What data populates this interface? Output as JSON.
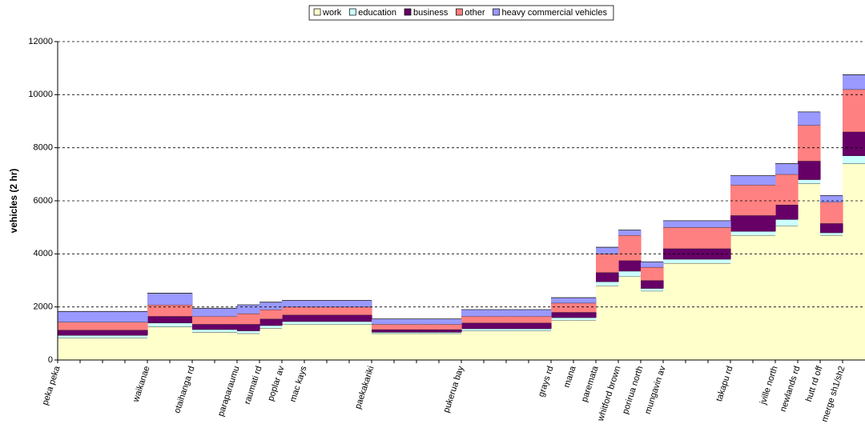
{
  "chart_data": {
    "type": "stacked-step-area",
    "y_label": "vehicles (2 hr)",
    "categories": [
      "peka peka",
      null,
      null,
      null,
      "waikanae",
      null,
      "otaihanga rd",
      null,
      "paraparaumu",
      "raumati rd",
      "poplar av",
      "mac kays",
      null,
      null,
      "paekakariki",
      null,
      null,
      null,
      "pukerua bay",
      null,
      null,
      null,
      "grays rd",
      "mana",
      "paremata",
      "whitford brown",
      "porirua north",
      "mungavin av",
      null,
      null,
      "takapu rd",
      null,
      "jville north",
      "newlands rd",
      "hutt rd off",
      "merge sh1/sh2"
    ],
    "series": [
      {
        "name": "work",
        "color": "#ffffcc",
        "values": [
          830,
          830,
          830,
          830,
          1250,
          1250,
          1050,
          1050,
          1000,
          1200,
          1350,
          1350,
          1350,
          1350,
          1000,
          1000,
          1000,
          1000,
          1100,
          1100,
          1100,
          1100,
          1500,
          1500,
          2800,
          3150,
          2600,
          3650,
          3650,
          3650,
          4700,
          4700,
          5050,
          6650,
          4700,
          7400
        ]
      },
      {
        "name": "education",
        "color": "#ccffff",
        "values": [
          100,
          100,
          100,
          100,
          150,
          150,
          100,
          100,
          100,
          100,
          100,
          100,
          100,
          100,
          50,
          50,
          50,
          50,
          80,
          80,
          80,
          80,
          100,
          100,
          150,
          200,
          100,
          150,
          150,
          150,
          150,
          150,
          250,
          150,
          100,
          300
        ]
      },
      {
        "name": "business",
        "color": "#660066",
        "values": [
          200,
          200,
          200,
          200,
          250,
          250,
          200,
          200,
          250,
          250,
          250,
          250,
          250,
          250,
          100,
          100,
          100,
          100,
          220,
          220,
          220,
          220,
          200,
          200,
          350,
          400,
          300,
          400,
          400,
          400,
          600,
          600,
          550,
          700,
          350,
          900
        ]
      },
      {
        "name": "other",
        "color": "#ff8080",
        "values": [
          300,
          300,
          300,
          300,
          430,
          430,
          300,
          300,
          400,
          350,
          300,
          300,
          300,
          300,
          200,
          200,
          200,
          200,
          250,
          250,
          250,
          250,
          350,
          350,
          700,
          950,
          500,
          800,
          800,
          800,
          1150,
          1150,
          1150,
          1350,
          800,
          1600
        ]
      },
      {
        "name": "heavy commercial vehicles",
        "color": "#9999ff",
        "values": [
          400,
          400,
          400,
          400,
          440,
          440,
          300,
          300,
          330,
          280,
          250,
          250,
          250,
          250,
          200,
          200,
          200,
          200,
          250,
          250,
          250,
          250,
          200,
          200,
          250,
          200,
          200,
          250,
          250,
          250,
          350,
          350,
          400,
          500,
          250,
          550
        ]
      }
    ],
    "ylim": [
      0,
      12000
    ],
    "yticks": [
      0,
      2000,
      4000,
      6000,
      8000,
      10000,
      12000
    ],
    "grid": true,
    "legend": "top"
  }
}
